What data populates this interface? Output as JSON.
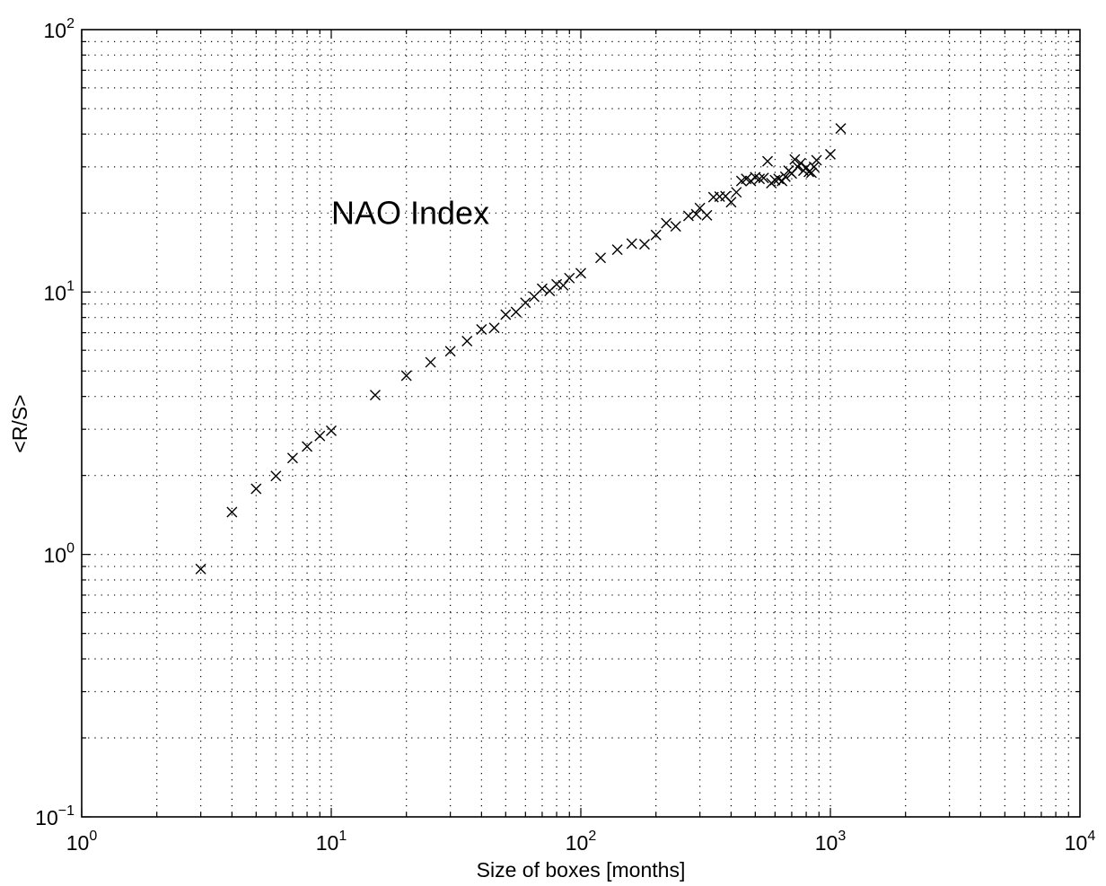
{
  "chart_data": {
    "type": "scatter",
    "title": "",
    "annotations": [
      {
        "text": "NAO Index",
        "x": 10,
        "y": 20
      }
    ],
    "xlabel": "Size of boxes [months]",
    "ylabel": "<R/S>",
    "xscale": "log",
    "yscale": "log",
    "xlim": [
      1,
      10000
    ],
    "ylim": [
      0.1,
      100
    ],
    "xticks": [
      {
        "base": "10",
        "exp": "0",
        "value": 1
      },
      {
        "base": "10",
        "exp": "1",
        "value": 10
      },
      {
        "base": "10",
        "exp": "2",
        "value": 100
      },
      {
        "base": "10",
        "exp": "3",
        "value": 1000
      },
      {
        "base": "10",
        "exp": "4",
        "value": 10000
      }
    ],
    "yticks": [
      {
        "base": "10",
        "exp": "−1",
        "value": 0.1
      },
      {
        "base": "10",
        "exp": "0",
        "value": 1
      },
      {
        "base": "10",
        "exp": "1",
        "value": 10
      },
      {
        "base": "10",
        "exp": "2",
        "value": 100
      }
    ],
    "grid": true,
    "minor_grid": true,
    "marker": "x",
    "color": "#000000",
    "points": [
      [
        3,
        0.88
      ],
      [
        4,
        1.45
      ],
      [
        5,
        1.78
      ],
      [
        6,
        1.99
      ],
      [
        7,
        2.33
      ],
      [
        8,
        2.58
      ],
      [
        9,
        2.83
      ],
      [
        10,
        2.96
      ],
      [
        15,
        4.05
      ],
      [
        20,
        4.8
      ],
      [
        25,
        5.4
      ],
      [
        30,
        5.95
      ],
      [
        35,
        6.5
      ],
      [
        40,
        7.2
      ],
      [
        45,
        7.3
      ],
      [
        50,
        8.2
      ],
      [
        55,
        8.4
      ],
      [
        60,
        9.1
      ],
      [
        65,
        9.6
      ],
      [
        70,
        10.3
      ],
      [
        75,
        10.1
      ],
      [
        80,
        10.7
      ],
      [
        85,
        10.6
      ],
      [
        90,
        11.3
      ],
      [
        100,
        11.8
      ],
      [
        120,
        13.5
      ],
      [
        140,
        14.5
      ],
      [
        160,
        15.3
      ],
      [
        180,
        15.2
      ],
      [
        200,
        16.5
      ],
      [
        220,
        18.3
      ],
      [
        240,
        17.8
      ],
      [
        270,
        19.5
      ],
      [
        290,
        19.8
      ],
      [
        300,
        20.9
      ],
      [
        320,
        19.6
      ],
      [
        340,
        23.0
      ],
      [
        360,
        23.1
      ],
      [
        380,
        23.2
      ],
      [
        400,
        22.0
      ],
      [
        420,
        24.0
      ],
      [
        440,
        26.5
      ],
      [
        460,
        27.0
      ],
      [
        480,
        26.5
      ],
      [
        500,
        27.4
      ],
      [
        520,
        27.0
      ],
      [
        540,
        27.2
      ],
      [
        560,
        31.5
      ],
      [
        580,
        26.0
      ],
      [
        600,
        26.7
      ],
      [
        620,
        27.0
      ],
      [
        640,
        26.5
      ],
      [
        660,
        27.5
      ],
      [
        680,
        29.0
      ],
      [
        700,
        28.3
      ],
      [
        720,
        32.0
      ],
      [
        740,
        30.0
      ],
      [
        760,
        31.0
      ],
      [
        780,
        29.0
      ],
      [
        800,
        29.8
      ],
      [
        820,
        28.7
      ],
      [
        840,
        28.5
      ],
      [
        860,
        30.0
      ],
      [
        880,
        31.8
      ],
      [
        1000,
        33.5
      ],
      [
        1100,
        42.0
      ]
    ]
  }
}
